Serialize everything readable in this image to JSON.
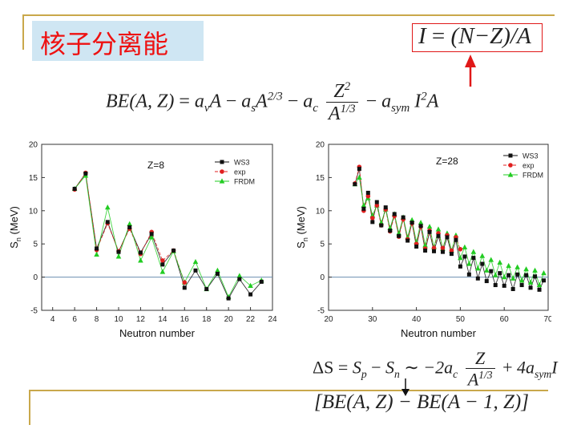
{
  "title": "核子分离能",
  "colors": {
    "accent_rule": "#c9a84b",
    "title_text": "#ee1111",
    "title_bg": "#cfe6f3",
    "ws3": "#111111",
    "exp": "#e02020",
    "frdm": "#22cc22"
  },
  "formulas": {
    "isospin": {
      "lhs": "I",
      "eq": "=",
      "rhs": "(N−Z)/A"
    },
    "binding": {
      "lhs": "BE(A, Z)",
      "eq": "=",
      "term1": "a",
      "term1_sub": "v",
      "term1_tail": "A",
      "op1": "−",
      "term2": "a",
      "term2_sub": "s",
      "term2_tail": "A",
      "term2_sup": "2/3",
      "op2": "−",
      "term3": "a",
      "term3_sub": "c",
      "frac_num": "Z",
      "frac_num_sup": "2",
      "frac_den": "A",
      "frac_den_sup": "1/3",
      "op3": "−",
      "term4": "a",
      "term4_sub": "sym",
      "term4_tail": "I",
      "term4_sup": "2",
      "term4_end": "A"
    },
    "delta_s": {
      "lhs": "ΔS",
      "eq": "=",
      "sp": "S",
      "sp_sub": "p",
      "minus": "−",
      "sn": "S",
      "sn_sub": "n",
      "approx": "∼",
      "coef": "−2a",
      "coef_sub": "c",
      "frac_num": "Z",
      "frac_den": "A",
      "frac_den_sup": "1/3",
      "plus": "+",
      "tail": "4a",
      "tail_sub": "sym",
      "tail_end": "I"
    },
    "difference": "[BE(A, Z) − BE(A − 1, Z)]"
  },
  "chart_data": [
    {
      "type": "line",
      "annotation": "Z=8",
      "xlabel": "Neutron number",
      "ylabel": "S",
      "ylabel_sub": "n",
      "ylabel_unit": "(MeV)",
      "xlim": [
        3,
        24
      ],
      "ylim": [
        -5,
        20
      ],
      "xticks": [
        4,
        6,
        8,
        10,
        12,
        14,
        16,
        18,
        20,
        22,
        24
      ],
      "yticks": [
        -5,
        0,
        5,
        10,
        15,
        20
      ],
      "legend": [
        "WS3",
        "exp",
        "FRDM"
      ],
      "legend_position": "top-right",
      "series": [
        {
          "name": "WS3",
          "x": [
            6,
            7,
            8,
            9,
            10,
            11,
            12,
            13,
            14,
            15,
            16,
            17,
            18,
            19,
            20,
            21,
            22,
            23
          ],
          "values": [
            13.3,
            15.6,
            4.3,
            8.3,
            3.8,
            7.5,
            3.7,
            6.5,
            1.9,
            4.0,
            -1.6,
            1.0,
            -1.8,
            0.5,
            -3.2,
            -0.3,
            -2.6,
            -0.7
          ]
        },
        {
          "name": "exp",
          "x": [
            6,
            7,
            8,
            9,
            10,
            11,
            12,
            13,
            14,
            15,
            16
          ],
          "values": [
            13.2,
            15.7,
            4.1,
            8.1,
            3.9,
            7.3,
            3.5,
            6.8,
            2.5,
            4.0,
            -0.8
          ]
        },
        {
          "name": "FRDM",
          "x": [
            6,
            7,
            8,
            9,
            10,
            11,
            12,
            13,
            14,
            15,
            16,
            17,
            18,
            19,
            20,
            21,
            22,
            23
          ],
          "values": [
            13.3,
            15.3,
            3.4,
            10.5,
            3.1,
            8.0,
            2.5,
            6.0,
            0.8,
            3.9,
            -0.8,
            2.3,
            -1.8,
            1.0,
            -3.0,
            0.2,
            -1.3,
            -0.5
          ]
        }
      ]
    },
    {
      "type": "line",
      "annotation": "Z=28",
      "xlabel": "Neutron number",
      "ylabel": "S",
      "ylabel_sub": "n",
      "ylabel_unit": "(MeV)",
      "xlim": [
        20,
        70
      ],
      "ylim": [
        -5,
        20
      ],
      "xticks": [
        20,
        30,
        40,
        50,
        60,
        70
      ],
      "yticks": [
        -5,
        0,
        5,
        10,
        15,
        20
      ],
      "legend": [
        "WS3",
        "exp",
        "FRDM"
      ],
      "legend_position": "top-right",
      "series": [
        {
          "name": "WS3",
          "x": [
            26,
            27,
            28,
            29,
            30,
            31,
            32,
            33,
            34,
            35,
            36,
            37,
            38,
            39,
            40,
            41,
            42,
            43,
            44,
            45,
            46,
            47,
            48,
            49,
            50,
            51,
            52,
            53,
            54,
            55,
            56,
            57,
            58,
            59,
            60,
            61,
            62,
            63,
            64,
            65,
            66,
            67,
            68,
            69
          ],
          "values": [
            14.0,
            16.3,
            10.3,
            12.7,
            8.3,
            11.3,
            7.8,
            10.5,
            7.0,
            9.5,
            6.2,
            9.0,
            5.5,
            8.2,
            4.6,
            7.7,
            4.0,
            6.8,
            3.9,
            6.2,
            3.8,
            6.0,
            3.5,
            5.6,
            1.6,
            3.1,
            0.4,
            2.9,
            -0.2,
            2.0,
            -0.6,
            0.9,
            -1.2,
            0.6,
            -1.3,
            0.3,
            -1.8,
            0.4,
            -1.2,
            0.3,
            -1.6,
            0.1,
            -1.9,
            -0.5
          ]
        },
        {
          "name": "exp",
          "x": [
            26,
            27,
            28,
            29,
            30,
            31,
            32,
            33,
            34,
            35,
            36,
            37,
            38,
            39,
            40,
            41,
            42,
            43,
            44,
            45,
            46,
            47,
            48,
            49,
            50
          ],
          "values": [
            14.1,
            16.6,
            10.0,
            12.2,
            8.9,
            10.8,
            7.8,
            10.2,
            6.9,
            9.2,
            6.1,
            8.7,
            5.7,
            8.1,
            5.0,
            7.6,
            4.3,
            7.0,
            4.4,
            6.6,
            4.4,
            6.3,
            4.0,
            6.0,
            4.2
          ]
        },
        {
          "name": "FRDM",
          "x": [
            26,
            27,
            28,
            29,
            30,
            31,
            32,
            33,
            34,
            35,
            36,
            37,
            38,
            39,
            40,
            41,
            42,
            43,
            44,
            45,
            46,
            47,
            48,
            49,
            50,
            51,
            52,
            53,
            54,
            55,
            56,
            57,
            58,
            59,
            60,
            61,
            62,
            63,
            64,
            65,
            66,
            67,
            68,
            69
          ],
          "values": [
            14.0,
            15.0,
            10.8,
            11.9,
            9.3,
            10.8,
            8.2,
            10.2,
            7.4,
            9.5,
            6.6,
            9.0,
            6.0,
            8.6,
            5.3,
            8.2,
            4.8,
            7.6,
            4.5,
            7.2,
            4.3,
            6.6,
            4.0,
            6.3,
            2.9,
            4.5,
            2.0,
            3.8,
            1.3,
            3.2,
            1.0,
            2.6,
            0.3,
            2.2,
            0.0,
            1.7,
            -0.2,
            1.5,
            -0.5,
            1.2,
            -0.8,
            1.0,
            -1.2,
            0.6
          ]
        }
      ]
    }
  ]
}
